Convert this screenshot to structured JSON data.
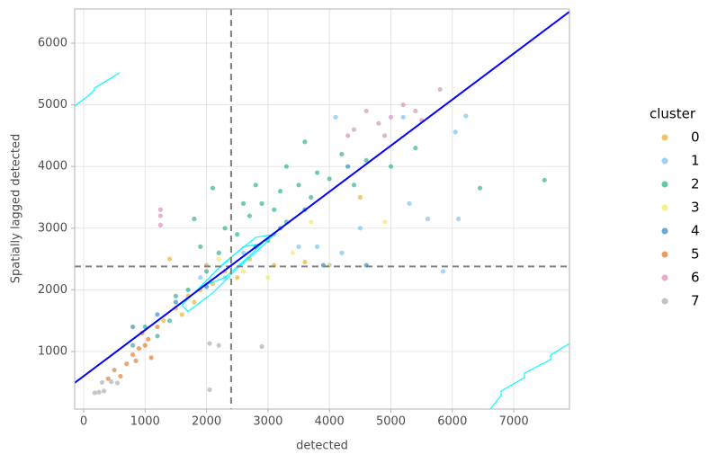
{
  "chart_data": {
    "type": "scatter",
    "x_label": "detected",
    "y_label": "Spatially lagged detected",
    "legend_title": "cluster",
    "legend": "right",
    "grid": true,
    "xlim": [
      -146,
      7906
    ],
    "ylim": [
      67,
      6554
    ],
    "xticks": [
      0,
      1000,
      2000,
      3000,
      4000,
      5000,
      6000,
      7000
    ],
    "yticks": [
      1000,
      2000,
      3000,
      4000,
      5000,
      6000
    ],
    "vline": 2400,
    "hline": 2380,
    "ref_color": "#808080",
    "regression_line": {
      "color": "#0000ff",
      "x": [
        -146,
        7906
      ],
      "y": [
        492,
        6510
      ]
    },
    "contour_color": "#00ffff",
    "contours": [
      {
        "x": [
          -146,
          80,
          176,
          176,
          586
        ],
        "y": [
          4980,
          5150,
          5242,
          5270,
          5520
        ]
      },
      {
        "x": [
          6618,
          6793,
          6793,
          7174,
          7174,
          7599,
          7599,
          7906
        ],
        "y": [
          67,
          286,
          359,
          577,
          650,
          869,
          942,
          1131
        ]
      },
      {
        "x": [
          1600,
          1900,
          2300,
          2800,
          3100,
          2900,
          2500,
          2100,
          1700,
          1600
        ],
        "y": [
          1750,
          2050,
          2450,
          2850,
          2900,
          2700,
          2350,
          1950,
          1650,
          1750
        ]
      },
      {
        "x": [
          1900,
          2200,
          2600,
          2900,
          2700,
          2300,
          1900
        ],
        "y": [
          2050,
          2350,
          2700,
          2750,
          2550,
          2200,
          2050
        ]
      }
    ],
    "series": [
      {
        "name": "0",
        "color": "#E69F00",
        "x": [
          1300,
          1500,
          1700,
          1900,
          2100,
          2300,
          2500,
          1600,
          2000,
          2700,
          3100,
          3600,
          4500,
          1400,
          1800
        ],
        "y": [
          1500,
          1700,
          1900,
          2000,
          2100,
          2300,
          2200,
          1600,
          2400,
          2500,
          2400,
          2450,
          3500,
          2500,
          1800
        ]
      },
      {
        "name": "1",
        "color": "#56B4E9",
        "x": [
          1900,
          2300,
          2600,
          3100,
          3500,
          4200,
          4500,
          5300,
          5600,
          6100,
          5850,
          6050,
          6220,
          5200,
          4100,
          3800,
          4000
        ],
        "y": [
          2200,
          2200,
          2600,
          2900,
          2700,
          2600,
          3000,
          3400,
          3150,
          3150,
          2300,
          4560,
          4820,
          4800,
          4800,
          2700,
          2400
        ]
      },
      {
        "name": "2",
        "color": "#009E73",
        "x": [
          800,
          1000,
          1200,
          1400,
          1700,
          1800,
          2000,
          2200,
          2100,
          2300,
          2500,
          2700,
          2900,
          3000,
          3200,
          3300,
          3500,
          3600,
          3800,
          4000,
          4200,
          4400,
          4600,
          3300,
          2800,
          3100,
          3700,
          6450,
          7500,
          5400,
          2600,
          1900,
          1500,
          5000
        ],
        "y": [
          1100,
          1400,
          1250,
          1500,
          2000,
          3150,
          2300,
          2600,
          3650,
          3000,
          2900,
          3200,
          3400,
          2800,
          3600,
          4000,
          3700,
          4400,
          3900,
          3800,
          4200,
          3700,
          4100,
          3100,
          3700,
          3300,
          3500,
          3650,
          3780,
          4300,
          3400,
          2700,
          1900,
          4000
        ]
      },
      {
        "name": "3",
        "color": "#F0E442",
        "x": [
          2200,
          2600,
          3000,
          3400,
          4000,
          4900,
          3700,
          2800
        ],
        "y": [
          2500,
          2300,
          2200,
          2600,
          2400,
          3100,
          3100,
          2700
        ]
      },
      {
        "name": "4",
        "color": "#0072B2",
        "x": [
          800,
          1200,
          1500,
          2800,
          3200,
          3600,
          3900,
          4600,
          2000,
          4300
        ],
        "y": [
          1400,
          1600,
          1800,
          2700,
          3000,
          3300,
          2400,
          2400,
          2050,
          4000
        ]
      },
      {
        "name": "5",
        "color": "#D55E00",
        "x": [
          400,
          500,
          600,
          800,
          900,
          1000,
          1100,
          950,
          850,
          1200,
          700,
          1050
        ],
        "y": [
          560,
          700,
          600,
          950,
          1050,
          1100,
          900,
          1300,
          850,
          1400,
          800,
          1200
        ]
      },
      {
        "name": "6",
        "color": "#CC79A7",
        "x": [
          1250,
          1250,
          1250,
          4400,
          4600,
          4800,
          5000,
          5200,
          5800,
          5400,
          4300,
          4900,
          5500
        ],
        "y": [
          3300,
          3200,
          3050,
          4600,
          4900,
          4700,
          4800,
          5000,
          5250,
          4900,
          4500,
          4500,
          4750
        ]
      },
      {
        "name": "7",
        "color": "#999999",
        "x": [
          180,
          250,
          330,
          450,
          550,
          2050,
          2050,
          2200,
          2900,
          300
        ],
        "y": [
          330,
          340,
          360,
          510,
          490,
          380,
          1130,
          1100,
          1080,
          500
        ]
      }
    ]
  }
}
